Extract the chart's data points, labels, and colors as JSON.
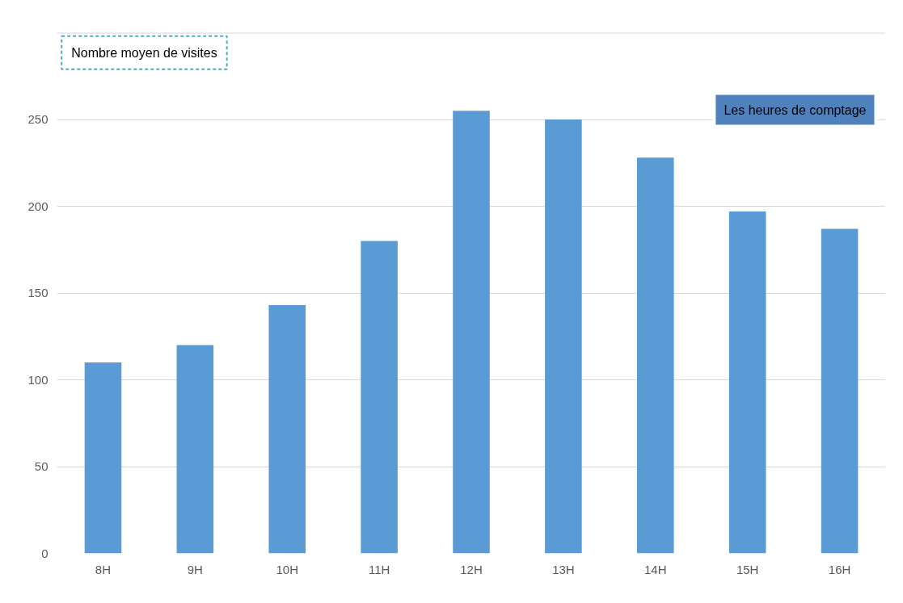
{
  "chart_data": {
    "type": "bar",
    "xlabel": "Les heures de comptage",
    "ylabel": "Nombre moyen de visites",
    "categories": [
      "8H",
      "9H",
      "10H",
      "11H",
      "12H",
      "13H",
      "14H",
      "15H",
      "16H"
    ],
    "values": [
      110,
      120,
      143,
      180,
      255,
      250,
      228,
      197,
      187
    ],
    "color": "#5b9bd5",
    "ylim": [
      0,
      300
    ],
    "yticks": [
      0,
      50,
      100,
      150,
      200,
      250,
      {
        "value": 300,
        "label": null
      }
    ],
    "grid": "y"
  }
}
